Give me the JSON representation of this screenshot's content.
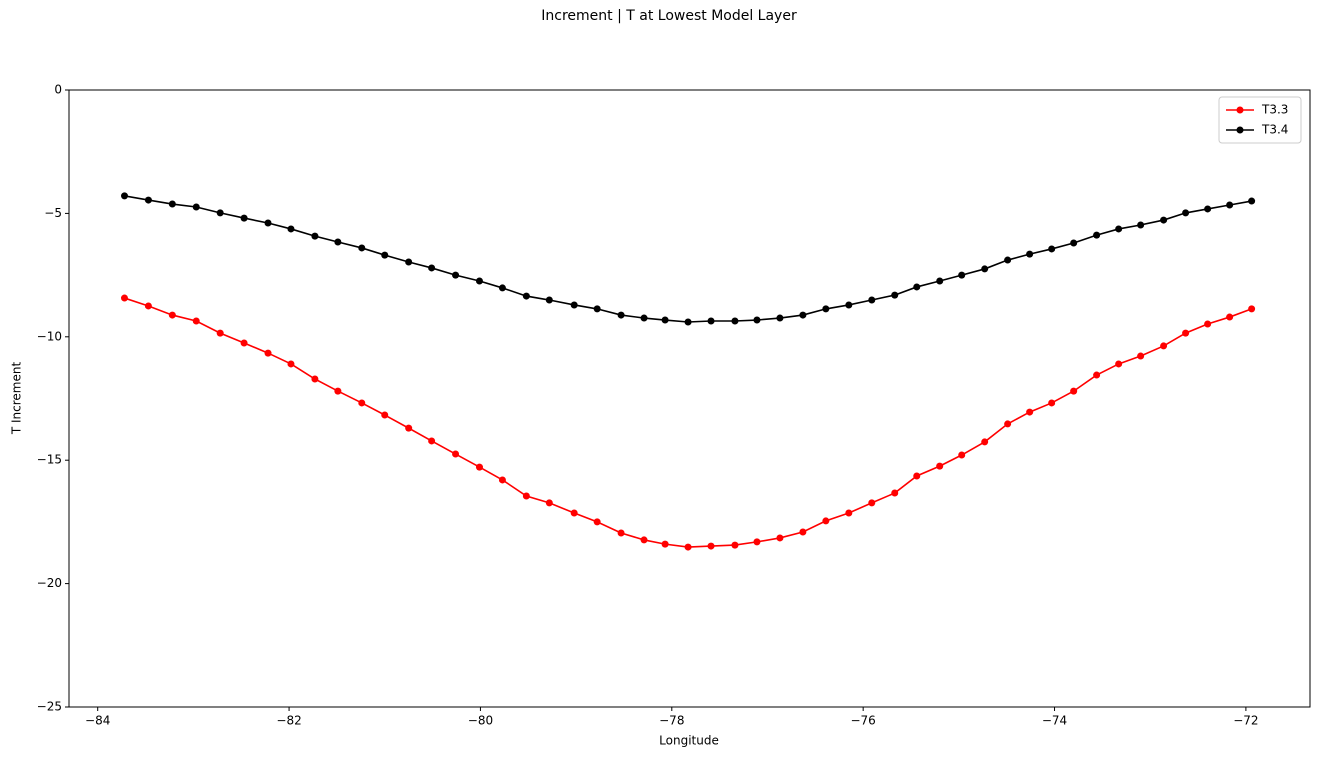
{
  "chart_data": {
    "type": "line",
    "title": "Increment | T at Lowest Model Layer",
    "xlabel": "Longitude",
    "ylabel": "T Increment",
    "x": [
      -83.72,
      -83.47,
      -83.22,
      -82.97,
      -82.72,
      -82.47,
      -82.22,
      -81.98,
      -81.73,
      -81.49,
      -81.24,
      -81.0,
      -80.75,
      -80.51,
      -80.26,
      -80.01,
      -79.77,
      -79.52,
      -79.28,
      -79.02,
      -78.78,
      -78.53,
      -78.29,
      -78.07,
      -77.83,
      -77.59,
      -77.34,
      -77.11,
      -76.87,
      -76.63,
      -76.39,
      -76.15,
      -75.91,
      -75.67,
      -75.44,
      -75.2,
      -74.97,
      -74.73,
      -74.49,
      -74.26,
      -74.03,
      -73.8,
      -73.56,
      -73.33,
      -73.1,
      -72.86,
      -72.63,
      -72.4,
      -72.17,
      -71.94
    ],
    "series": [
      {
        "name": "T3.3",
        "color": "#ff0000",
        "values": [
          -8.43,
          -8.75,
          -9.12,
          -9.36,
          -9.85,
          -10.25,
          -10.66,
          -11.1,
          -11.71,
          -12.2,
          -12.68,
          -13.17,
          -13.7,
          -14.22,
          -14.75,
          -15.28,
          -15.8,
          -16.45,
          -16.73,
          -17.14,
          -17.5,
          -17.95,
          -18.23,
          -18.4,
          -18.52,
          -18.48,
          -18.44,
          -18.31,
          -18.15,
          -17.91,
          -17.46,
          -17.14,
          -16.73,
          -16.33,
          -15.64,
          -15.24,
          -14.79,
          -14.26,
          -13.53,
          -13.05,
          -12.68,
          -12.2,
          -11.55,
          -11.1,
          -10.78,
          -10.37,
          -9.85,
          -9.48,
          -9.2,
          -8.87
        ]
      },
      {
        "name": "T3.4",
        "color": "#000000",
        "values": [
          -4.29,
          -4.46,
          -4.62,
          -4.74,
          -4.98,
          -5.19,
          -5.39,
          -5.63,
          -5.92,
          -6.16,
          -6.4,
          -6.69,
          -6.97,
          -7.21,
          -7.5,
          -7.74,
          -8.02,
          -8.35,
          -8.51,
          -8.71,
          -8.87,
          -9.12,
          -9.24,
          -9.32,
          -9.4,
          -9.36,
          -9.36,
          -9.32,
          -9.24,
          -9.12,
          -8.87,
          -8.71,
          -8.51,
          -8.31,
          -7.98,
          -7.74,
          -7.5,
          -7.25,
          -6.89,
          -6.65,
          -6.44,
          -6.2,
          -5.88,
          -5.63,
          -5.47,
          -5.27,
          -4.98,
          -4.82,
          -4.66,
          -4.5
        ]
      }
    ],
    "xlim": [
      -84.3,
      -71.33
    ],
    "ylim": [
      -25,
      0
    ],
    "xticks": [
      {
        "value": -84,
        "label": "−84"
      },
      {
        "value": -82,
        "label": "−82"
      },
      {
        "value": -80,
        "label": "−80"
      },
      {
        "value": -78,
        "label": "−78"
      },
      {
        "value": -76,
        "label": "−76"
      },
      {
        "value": -74,
        "label": "−74"
      },
      {
        "value": -72,
        "label": "−72"
      }
    ],
    "yticks": [
      {
        "value": -25,
        "label": "−25"
      },
      {
        "value": -20,
        "label": "−20"
      },
      {
        "value": -15,
        "label": "−15"
      },
      {
        "value": -10,
        "label": "−10"
      },
      {
        "value": -5,
        "label": "−5"
      },
      0
    ],
    "legend": "upper right"
  }
}
